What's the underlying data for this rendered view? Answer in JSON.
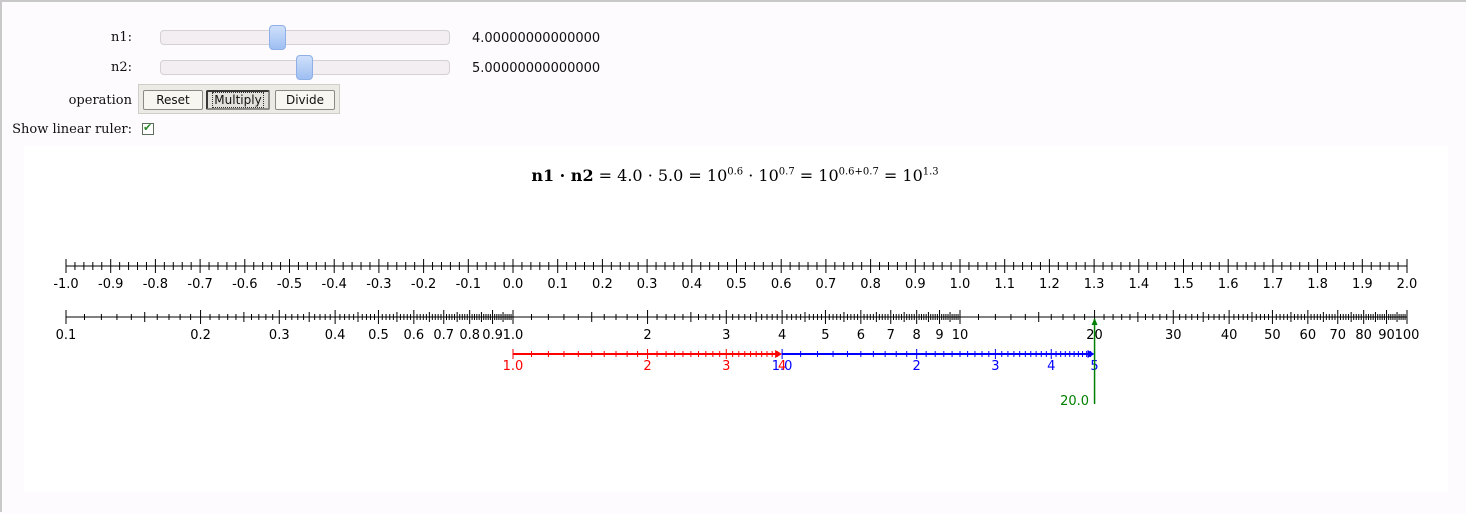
{
  "controls": {
    "n1": {
      "label": "n1:",
      "value_text": "4.00000000000000",
      "value": 4.0,
      "min": 0.1,
      "max": 10
    },
    "n2": {
      "label": "n2:",
      "value_text": "5.00000000000000",
      "value": 5.0,
      "min": 0.1,
      "max": 10
    },
    "operation": {
      "label": "operation",
      "buttons": [
        "Reset",
        "Multiply",
        "Divide"
      ],
      "selected": "Multiply"
    },
    "linear_ruler": {
      "label": "Show linear ruler:",
      "checked": true,
      "check_glyph": "✔"
    }
  },
  "formula": {
    "lhs": "n1 · n2",
    "eq": " = ",
    "numbers": "4.0 · 5.0",
    "base": "10",
    "e1": "0.6",
    "e2": "0.7",
    "esum": "0.6+0.7",
    "eres": "1.3",
    "dot": " · "
  },
  "chart_data": {
    "type": "slide-rule",
    "linear_ruler": {
      "range": [
        -1.0,
        2.0
      ],
      "major_step": 0.1,
      "tick_labels": [
        "-1.0",
        "-0.9",
        "-0.8",
        "-0.7",
        "-0.6",
        "-0.5",
        "-0.4",
        "-0.3",
        "-0.2",
        "-0.1",
        "0.0",
        "0.1",
        "0.2",
        "0.3",
        "0.4",
        "0.5",
        "0.6",
        "0.7",
        "0.8",
        "0.9",
        "1.0",
        "1.1",
        "1.2",
        "1.3",
        "1.4",
        "1.5",
        "1.6",
        "1.7",
        "1.8",
        "1.9",
        "2.0"
      ]
    },
    "log_ruler": {
      "range": [
        0.1,
        100
      ],
      "tick_labels": [
        {
          "v": 0.1,
          "t": "0.1"
        },
        {
          "v": 0.2,
          "t": "0.2"
        },
        {
          "v": 0.3,
          "t": "0.3"
        },
        {
          "v": 0.4,
          "t": "0.4"
        },
        {
          "v": 0.5,
          "t": "0.5"
        },
        {
          "v": 0.6,
          "t": "0.6"
        },
        {
          "v": 0.7,
          "t": "0.7"
        },
        {
          "v": 0.8,
          "t": "0.8"
        },
        {
          "v": 0.9,
          "t": "0.9"
        },
        {
          "v": 1,
          "t": "1.0"
        },
        {
          "v": 2,
          "t": "2"
        },
        {
          "v": 3,
          "t": "3"
        },
        {
          "v": 4,
          "t": "4"
        },
        {
          "v": 5,
          "t": "5"
        },
        {
          "v": 6,
          "t": "6"
        },
        {
          "v": 7,
          "t": "7"
        },
        {
          "v": 8,
          "t": "8"
        },
        {
          "v": 9,
          "t": "9"
        },
        {
          "v": 10,
          "t": "10"
        },
        {
          "v": 20,
          "t": "20"
        },
        {
          "v": 30,
          "t": "30"
        },
        {
          "v": 40,
          "t": "40"
        },
        {
          "v": 50,
          "t": "50"
        },
        {
          "v": 60,
          "t": "60"
        },
        {
          "v": 70,
          "t": "70"
        },
        {
          "v": 80,
          "t": "80"
        },
        {
          "v": 90,
          "t": "90"
        },
        {
          "v": 100,
          "t": "100"
        }
      ]
    },
    "segments": [
      {
        "name": "",
        "color": "#ff0000",
        "from": 1,
        "to": 4,
        "start_label": "1.0",
        "end_label": "4",
        "tick_labels": [
          {
            "v": 2,
            "t": "2"
          },
          {
            "v": 3,
            "t": "3"
          }
        ]
      },
      {
        "name": "",
        "color": "#0000ff",
        "from": 4,
        "to": 20,
        "start_label": "1.0",
        "end_label": "5",
        "tick_labels": [
          {
            "v": 8,
            "t": "2"
          },
          {
            "v": 12,
            "t": "3"
          },
          {
            "v": 16,
            "t": "4"
          }
        ]
      }
    ],
    "result": {
      "value": 20,
      "label": "20.0",
      "color": "#008000"
    }
  }
}
